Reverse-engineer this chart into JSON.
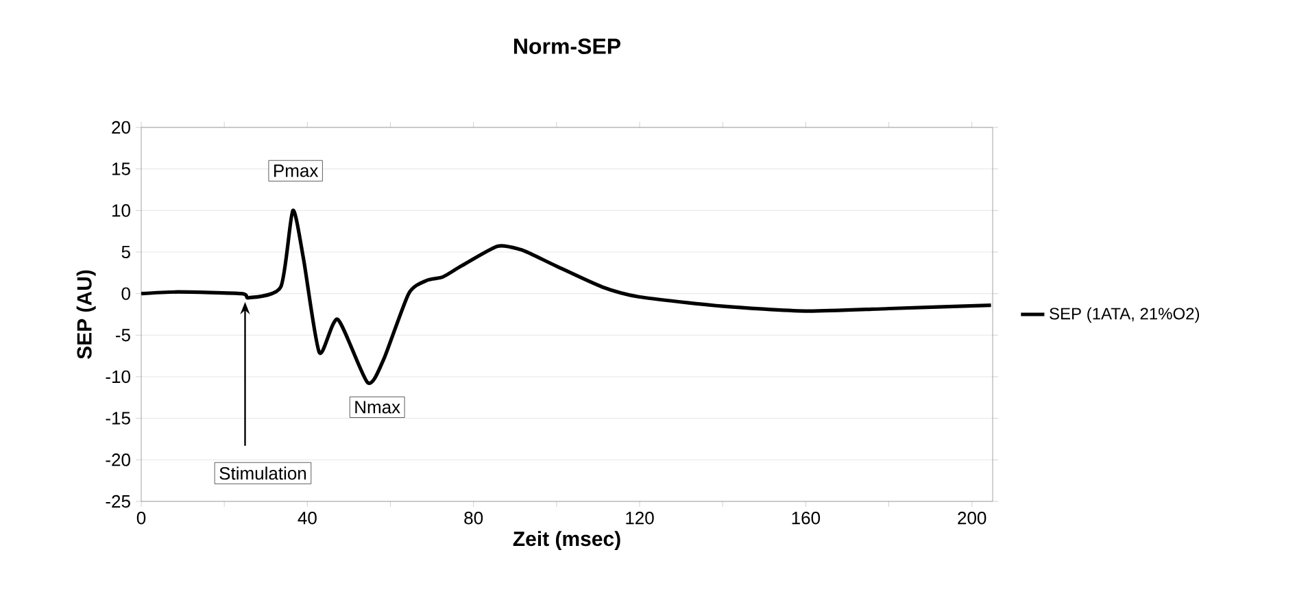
{
  "chart_data": {
    "type": "line",
    "title": "Norm-SEP",
    "xlabel": "Zeit (msec)",
    "ylabel": "SEP (AU)",
    "x": [
      0,
      8.8,
      24.2,
      25.9,
      33.6,
      36.5,
      39.1,
      42.9,
      47.3,
      54.5,
      58.3,
      64.4,
      68.8,
      72.6,
      77,
      85.8,
      91.3,
      94.6,
      100,
      111,
      120,
      139.7,
      160,
      180,
      204.6
    ],
    "series": [
      {
        "name": "SEP (1ATA, 21%O2)",
        "color": "#000000",
        "values": [
          0,
          0.2,
          0,
          -0.5,
          0.8,
          10,
          4.1,
          -7.1,
          -3.1,
          -10.7,
          -8,
          0,
          1.6,
          2,
          3.3,
          5.7,
          5.3,
          4.6,
          3.3,
          0.8,
          -0.4,
          -1.5,
          -2.1,
          -1.8,
          -1.4
        ]
      }
    ],
    "xlim": [
      0,
      205
    ],
    "xticks": [
      0,
      {
        "value": 20,
        "label": null
      },
      40,
      {
        "value": 60,
        "label": null
      },
      80,
      {
        "value": 100,
        "label": null
      },
      120,
      {
        "value": 140,
        "label": null
      },
      160,
      {
        "value": 180,
        "label": null
      },
      200
    ],
    "ylim": [
      -25,
      20
    ],
    "yticks": [
      -25,
      -20,
      -15,
      -10,
      -5,
      0,
      5,
      10,
      15,
      20
    ],
    "grid": "y",
    "legend": "right",
    "annotations": [
      {
        "text": "Pmax",
        "x": 36.5,
        "y": 10
      },
      {
        "text": "Nmax",
        "x": 54.5,
        "y": -10.7
      },
      {
        "text": "Stimulation",
        "x": 25,
        "y": -1
      }
    ]
  }
}
